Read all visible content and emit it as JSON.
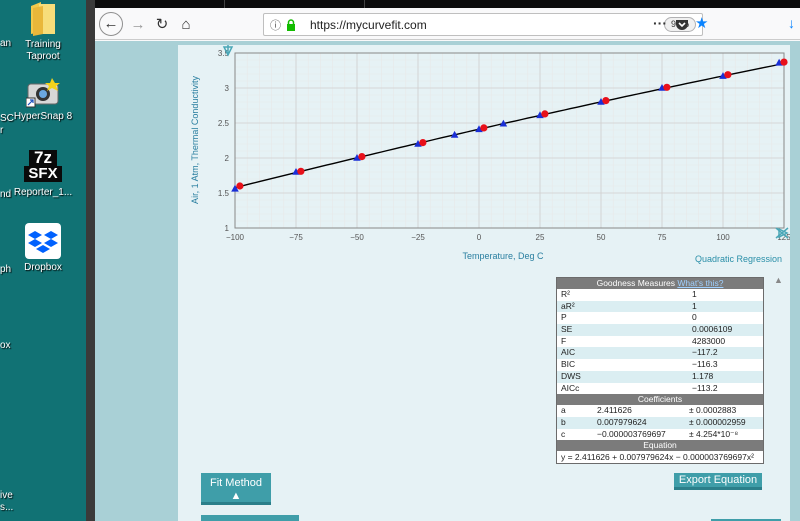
{
  "desktop": {
    "icons": [
      {
        "label_lines": [
          "Training",
          "Taproot"
        ],
        "icon": "folder-icon"
      },
      {
        "label_lines": [
          "HyperSnap 8"
        ],
        "icon": "hypersnap-icon"
      },
      {
        "label_lines": [
          "Reporter_1..."
        ],
        "icon": "7z-sfx-icon",
        "badge_top": "7z",
        "badge_bottom": "SFX"
      },
      {
        "label_lines": [
          "Dropbox"
        ],
        "icon": "dropbox-icon"
      }
    ],
    "partial_labels": [
      "an",
      "SC",
      "r",
      "nd",
      "ph",
      "ox",
      "ive",
      "s..."
    ]
  },
  "browser": {
    "url": "https://mycurvefit.com",
    "zoom": "90%",
    "more_label": "···"
  },
  "page": {
    "regression_label": "Quadratic Regression",
    "goodness_title": "Goodness Measures",
    "whats_this": "What's this?",
    "measures": [
      {
        "name": "R²",
        "value": "1"
      },
      {
        "name": "aR²",
        "value": "1"
      },
      {
        "name": "P",
        "value": "0"
      },
      {
        "name": "SE",
        "value": "0.0006109"
      },
      {
        "name": "F",
        "value": "4283000"
      },
      {
        "name": "AIC",
        "value": "−117.2"
      },
      {
        "name": "BIC",
        "value": "−116.3"
      },
      {
        "name": "DWS",
        "value": "1.178"
      },
      {
        "name": "AICc",
        "value": "−113.2"
      }
    ],
    "coefficients_title": "Coefficients",
    "coefficients": [
      {
        "name": "a",
        "value": "2.411626",
        "err": "± 0.0002883"
      },
      {
        "name": "b",
        "value": "0.007979624",
        "err": "± 0.000002959"
      },
      {
        "name": "c",
        "value": "−0.000003769697",
        "err": "± 4.254*10⁻⁸"
      }
    ],
    "equation_title": "Equation",
    "equation": "y = 2.411626 + 0.007979624x − 0.000003769697x²",
    "fit_method_label": "Fit Method",
    "fit_method_arrow": "▲",
    "export_label": "Export Equation"
  },
  "chart_data": {
    "type": "scatter",
    "xlabel": "Temperature, Deg C",
    "ylabel": "Air, 1 Atm, Thermal Conductivity",
    "xlim": [
      -100,
      125
    ],
    "ylim": [
      1,
      3.5
    ],
    "x_ticks": [
      -100,
      -75,
      -50,
      -25,
      0,
      25,
      50,
      75,
      100,
      125
    ],
    "y_ticks": [
      1,
      1.5,
      2,
      2.5,
      3,
      3.5
    ],
    "grid": true,
    "series": [
      {
        "marker": "triangle",
        "color": "#1a2fd6",
        "points": [
          [
            -100,
            1.56
          ],
          [
            -75,
            1.8
          ],
          [
            -50,
            2.0
          ],
          [
            -25,
            2.2
          ],
          [
            -10,
            2.33
          ],
          [
            0,
            2.41
          ],
          [
            10,
            2.49
          ],
          [
            25,
            2.61
          ],
          [
            50,
            2.8
          ],
          [
            75,
            3.0
          ],
          [
            100,
            3.17
          ],
          [
            123,
            3.36
          ]
        ]
      },
      {
        "marker": "circle",
        "color": "#e8101a",
        "points": [
          [
            -98,
            1.6
          ],
          [
            -73,
            1.81
          ],
          [
            -48,
            2.02
          ],
          [
            -23,
            2.22
          ],
          [
            2,
            2.43
          ],
          [
            27,
            2.63
          ],
          [
            52,
            2.82
          ],
          [
            77,
            3.01
          ],
          [
            102,
            3.19
          ],
          [
            125,
            3.37
          ]
        ]
      }
    ],
    "fit": {
      "type": "quadratic",
      "a": 2.411626,
      "b": 0.007979624,
      "c": -3.769697e-06,
      "color": "#000000"
    }
  }
}
